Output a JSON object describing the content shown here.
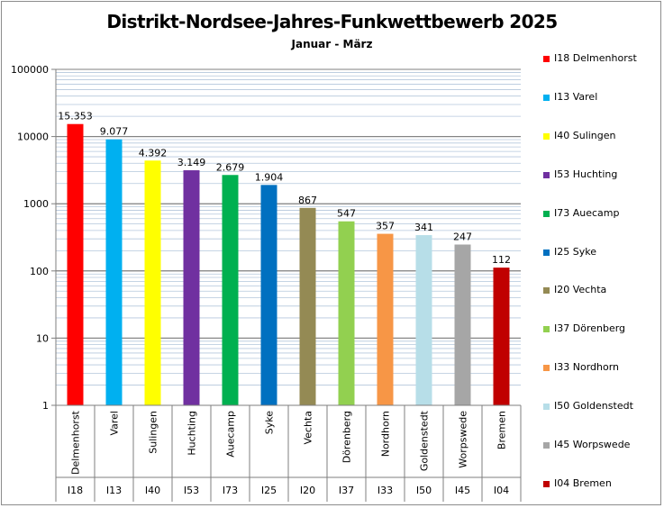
{
  "chart_data": {
    "type": "bar",
    "title": "Distrikt-Nordsee-Jahres-Funkwettbewerb 2025",
    "subtitle": "Januar - März",
    "yscale": "log",
    "ylim": [
      1,
      100000
    ],
    "yticks": [
      "1",
      "10",
      "100",
      "1000",
      "10000",
      "100000"
    ],
    "grid": true,
    "legend_position": "right",
    "categories": [
      "Delmenhorst",
      "Varel",
      "Sulingen",
      "Huchting",
      "Auecamp",
      "Syke",
      "Vechta",
      "Dörenberg",
      "Nordhorn",
      "Goldenstedt",
      "Worpswede",
      "Bremen"
    ],
    "codes": [
      "I18",
      "I13",
      "I40",
      "I53",
      "I73",
      "I25",
      "I20",
      "I37",
      "I33",
      "I50",
      "I45",
      "I04"
    ],
    "values": [
      15353,
      9077,
      4392,
      3149,
      2679,
      1904,
      867,
      547,
      357,
      341,
      247,
      112
    ],
    "value_labels": [
      "15.353",
      "9.077",
      "4.392",
      "3.149",
      "2.679",
      "1.904",
      "867",
      "547",
      "357",
      "341",
      "247",
      "112"
    ],
    "colors": [
      "#ff0000",
      "#00b0f0",
      "#ffff00",
      "#7030a0",
      "#00b050",
      "#0070c0",
      "#948a54",
      "#92d050",
      "#f79646",
      "#b7dee8",
      "#a6a6a6",
      "#c00000"
    ],
    "legend": [
      "I18 Delmenhorst",
      "I13 Varel",
      "I40 Sulingen",
      "I53 Huchting",
      "I73 Auecamp",
      "I25 Syke",
      "I20 Vechta",
      "I37 Dörenberg",
      "I33 Nordhorn",
      "I50 Goldenstedt",
      "I45 Worpswede",
      "I04 Bremen"
    ]
  }
}
